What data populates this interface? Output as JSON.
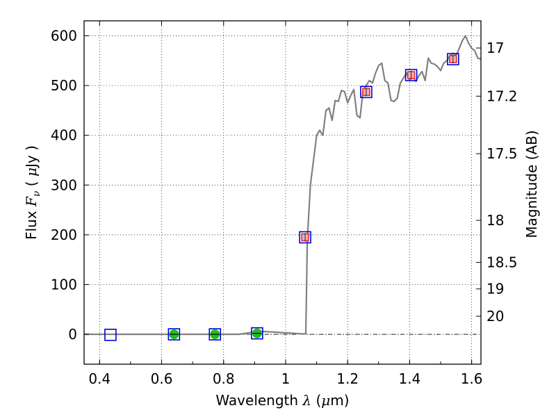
{
  "chart_data": {
    "type": "line",
    "title": "",
    "xlabel": "Wavelength  λ (μm)",
    "ylabel": "Flux  F_ν  ( μJy )",
    "y2label": "Magnitude (AB)",
    "xlim": [
      0.35,
      1.63
    ],
    "ylim": [
      -60,
      630
    ],
    "grid": true,
    "legend": "none",
    "x_ticks": [
      0.4,
      0.6,
      0.8,
      1.0,
      1.2,
      1.4,
      1.6
    ],
    "x_tick_labels": [
      "0.4",
      "0.6",
      "0.8",
      "1",
      "1.2",
      "1.4",
      "1.6"
    ],
    "y_ticks": [
      0,
      100,
      200,
      300,
      400,
      500,
      600
    ],
    "y_tick_labels": [
      "0",
      "100",
      "200",
      "300",
      "400",
      "500",
      "600"
    ],
    "mag_ticks": [
      17,
      17.2,
      17.5,
      18,
      18.5,
      19,
      20
    ],
    "mag_tick_labels": [
      "17",
      "17.2",
      "17.5",
      "18",
      "18.5",
      "19",
      "20"
    ],
    "colors": {
      "model": "#808080",
      "boxes": "#0000dd",
      "detections": "#22bb22",
      "nir_marker": "#dd3333",
      "zero_line": "#000000"
    },
    "series": [
      {
        "kind": "model-spectrum",
        "x": [
          0.35,
          0.4,
          0.45,
          0.5,
          0.55,
          0.6,
          0.65,
          0.7,
          0.75,
          0.8,
          0.85,
          0.88,
          0.9,
          0.92,
          0.95,
          1.0,
          1.05,
          1.065,
          1.07,
          1.08,
          1.1,
          1.11,
          1.12,
          1.13,
          1.14,
          1.15,
          1.16,
          1.17,
          1.18,
          1.19,
          1.2,
          1.21,
          1.22,
          1.23,
          1.24,
          1.25,
          1.26,
          1.27,
          1.28,
          1.29,
          1.3,
          1.31,
          1.32,
          1.33,
          1.34,
          1.35,
          1.36,
          1.37,
          1.38,
          1.39,
          1.4,
          1.41,
          1.42,
          1.43,
          1.44,
          1.45,
          1.46,
          1.47,
          1.48,
          1.49,
          1.5,
          1.51,
          1.52,
          1.53,
          1.54,
          1.55,
          1.56,
          1.57,
          1.58,
          1.59,
          1.6,
          1.61,
          1.62,
          1.63
        ],
        "values": [
          0,
          0,
          0,
          0,
          0,
          0,
          0,
          0,
          0,
          0,
          0,
          3,
          5,
          6,
          5,
          3,
          1,
          1,
          190,
          300,
          400,
          410,
          400,
          450,
          455,
          430,
          470,
          468,
          490,
          488,
          465,
          480,
          492,
          440,
          435,
          490,
          500,
          510,
          505,
          525,
          540,
          545,
          510,
          505,
          470,
          468,
          475,
          505,
          515,
          525,
          510,
          520,
          508,
          520,
          528,
          510,
          555,
          545,
          543,
          538,
          530,
          545,
          550,
          560,
          565,
          560,
          575,
          590,
          600,
          585,
          575,
          570,
          555,
          553
        ]
      },
      {
        "kind": "photometry-boxes",
        "x": [
          0.435,
          0.64,
          0.772,
          0.908,
          1.063,
          1.26,
          1.405,
          1.54
        ],
        "values": [
          -1,
          0,
          0,
          2,
          195,
          487,
          521,
          553
        ]
      },
      {
        "kind": "optical-detections",
        "x": [
          0.64,
          0.772,
          0.908
        ],
        "values": [
          0,
          0,
          2
        ]
      },
      {
        "kind": "nir-detections",
        "x": [
          1.063,
          1.26,
          1.405,
          1.54
        ],
        "values": [
          195,
          487,
          521,
          553
        ]
      }
    ]
  }
}
